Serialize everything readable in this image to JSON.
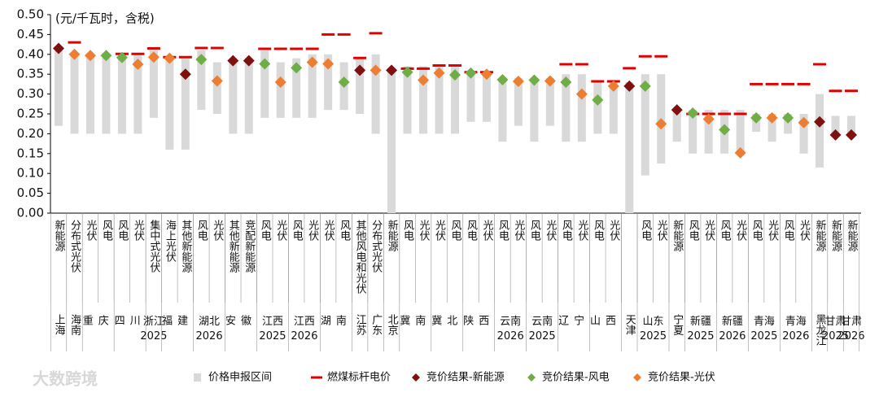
{
  "chart_data": {
    "type": "range_dot",
    "unit_label": "(元/千瓦时，含税)",
    "ylim": [
      0,
      0.5
    ],
    "yticks": [
      {
        "value": 0,
        "label": "0.00"
      },
      {
        "value": 0.05,
        "label": "0.05"
      },
      {
        "value": 0.1,
        "label": "0.10"
      },
      {
        "value": 0.15,
        "label": "0.15"
      },
      {
        "value": 0.2,
        "label": "0.20"
      },
      {
        "value": 0.25,
        "label": "0.25"
      },
      {
        "value": 0.3,
        "label": "0.30"
      },
      {
        "value": 0.35,
        "label": "0.35"
      },
      {
        "value": 0.4,
        "label": "0.40"
      },
      {
        "value": 0.45,
        "label": "0.45"
      },
      {
        "value": 0.5,
        "label": "0.50"
      }
    ],
    "groups": [
      {
        "label": "上海",
        "categories": [
          "新能源"
        ]
      },
      {
        "label": "海南",
        "categories": [
          "分布式光伏"
        ]
      },
      {
        "label": "重庆",
        "categories": [
          "光伏",
          "风电"
        ]
      },
      {
        "label": "四川",
        "categories": [
          "风电",
          "光伏"
        ]
      },
      {
        "label": "浙江2025",
        "categories": [
          "集中式光伏"
        ]
      },
      {
        "label": "福建",
        "categories": [
          "海上光伏",
          "其他新能源"
        ]
      },
      {
        "label": "湖北2026",
        "categories": [
          "风电",
          "光伏"
        ]
      },
      {
        "label": "安徽",
        "categories": [
          "其他新能源",
          "竞配新能源"
        ]
      },
      {
        "label": "江西2025",
        "categories": [
          "风电",
          "光伏"
        ]
      },
      {
        "label": "江西2026",
        "categories": [
          "风电",
          "光伏"
        ]
      },
      {
        "label": "湖南",
        "categories": [
          "光伏",
          "风电"
        ]
      },
      {
        "label": "江苏",
        "categories": [
          "其他风电和光伏"
        ]
      },
      {
        "label": "广东",
        "categories": [
          "分布式光伏"
        ]
      },
      {
        "label": "北京",
        "categories": [
          "新能源"
        ]
      },
      {
        "label": "冀南",
        "categories": [
          "风电",
          "光伏"
        ]
      },
      {
        "label": "冀北",
        "categories": [
          "光伏",
          "风电"
        ]
      },
      {
        "label": "陕西",
        "categories": [
          "风电",
          "光伏"
        ]
      },
      {
        "label": "云南2026",
        "categories": [
          "风电",
          "光伏"
        ]
      },
      {
        "label": "云南2025",
        "categories": [
          "风电",
          "光伏"
        ]
      },
      {
        "label": "辽宁",
        "categories": [
          "风电",
          "光伏"
        ]
      },
      {
        "label": "山西",
        "categories": [
          "风电",
          "光伏"
        ]
      },
      {
        "label": "天津",
        "categories": [
          null
        ]
      },
      {
        "label": "山东2025",
        "categories": [
          "风电",
          "光伏"
        ]
      },
      {
        "label": "宁夏",
        "categories": [
          "新能源"
        ]
      },
      {
        "label": "新疆2025",
        "categories": [
          "风电",
          "光伏"
        ]
      },
      {
        "label": "新疆2026",
        "categories": [
          "风电",
          "光伏"
        ]
      },
      {
        "label": "青海2025",
        "categories": [
          "风电",
          "光伏"
        ]
      },
      {
        "label": "青海2026",
        "categories": [
          "风电",
          "光伏"
        ]
      },
      {
        "label": "黑龙江",
        "categories": [
          "新能源"
        ]
      },
      {
        "label": "甘肃2025",
        "categories": [
          "新能源"
        ]
      },
      {
        "label": "甘肃2026",
        "categories": [
          "新能源"
        ]
      }
    ],
    "series": [
      {
        "name": "价格申报区间",
        "color": "#d9d9d9",
        "low": [
          0.22,
          0.2,
          0.2,
          0.2,
          0.2,
          0.2,
          0.24,
          0.16,
          0.16,
          0.26,
          0.25,
          0.2,
          0.2,
          0.24,
          0.24,
          0.24,
          0.24,
          0.26,
          0.26,
          0.25,
          0.2,
          0,
          0.2,
          0.2,
          0.2,
          0.2,
          0.23,
          0.23,
          0.18,
          0.22,
          0.18,
          0.22,
          0.18,
          0.18,
          0.2,
          0.2,
          0,
          0.095,
          0.125,
          0.18,
          0.15,
          0.15,
          0.15,
          0.15,
          0.205,
          0.18,
          0.2,
          0.15,
          0.115,
          0.2,
          0.2
        ],
        "high": [
          0.42,
          0.4,
          0.4,
          0.4,
          0.4,
          0.4,
          0.41,
          0.39,
          0.39,
          0.41,
          0.38,
          0.38,
          0.38,
          0.41,
          0.38,
          0.39,
          0.4,
          0.4,
          0.38,
          0.39,
          0.4,
          0.36,
          0.37,
          0.37,
          0.37,
          0.37,
          0.355,
          0.355,
          0.34,
          0.34,
          0.34,
          0.34,
          0.35,
          0.35,
          0.33,
          0.33,
          0.33,
          0.35,
          0.35,
          0.265,
          0.26,
          0.26,
          0.26,
          0.26,
          0.25,
          0.25,
          0.25,
          0.25,
          0.3,
          0.245,
          0.245
        ]
      },
      {
        "name": "燃煤标杆电价",
        "color": "#e00000",
        "values": [
          null,
          0.43,
          null,
          null,
          0.401,
          0.401,
          0.415,
          0.393,
          0.393,
          0.416,
          0.416,
          null,
          null,
          0.414,
          0.414,
          0.414,
          0.414,
          0.45,
          0.45,
          0.391,
          0.453,
          null,
          0.364,
          0.364,
          0.372,
          0.372,
          0.355,
          0.355,
          null,
          null,
          null,
          null,
          0.375,
          0.375,
          0.332,
          0.332,
          0.365,
          0.395,
          0.395,
          null,
          0.25,
          0.25,
          0.25,
          0.25,
          0.325,
          0.325,
          0.325,
          0.325,
          0.375,
          0.308,
          0.308
        ]
      },
      {
        "name": "竞价结果-新能源",
        "color": "#7f1010",
        "values": [
          0.415,
          null,
          null,
          null,
          null,
          null,
          null,
          null,
          0.35,
          null,
          null,
          0.384,
          0.384,
          null,
          null,
          null,
          null,
          null,
          null,
          0.36,
          null,
          0.36,
          null,
          null,
          null,
          null,
          null,
          null,
          null,
          null,
          null,
          null,
          null,
          null,
          null,
          null,
          0.32,
          null,
          null,
          0.26,
          null,
          null,
          null,
          null,
          null,
          null,
          null,
          null,
          0.23,
          0.197,
          0.197
        ]
      },
      {
        "name": "竞价结果-风电",
        "color": "#70ad47",
        "values": [
          null,
          null,
          null,
          0.397,
          0.392,
          null,
          null,
          null,
          null,
          0.387,
          null,
          null,
          null,
          0.376,
          null,
          0.366,
          null,
          null,
          0.33,
          null,
          null,
          null,
          0.355,
          null,
          null,
          0.348,
          0.353,
          null,
          0.336,
          null,
          0.335,
          null,
          0.33,
          null,
          0.285,
          null,
          null,
          0.32,
          null,
          null,
          0.252,
          null,
          0.21,
          null,
          0.24,
          null,
          0.24,
          null,
          null,
          null,
          null
        ]
      },
      {
        "name": "竞价结果-光伏",
        "color": "#ed7d31",
        "values": [
          null,
          0.4,
          0.397,
          null,
          null,
          0.375,
          0.393,
          0.39,
          null,
          null,
          0.333,
          null,
          null,
          null,
          0.33,
          null,
          0.38,
          0.376,
          null,
          null,
          0.36,
          null,
          null,
          0.335,
          0.353,
          null,
          null,
          0.35,
          null,
          0.332,
          null,
          0.333,
          null,
          0.3,
          null,
          0.32,
          null,
          null,
          0.225,
          null,
          null,
          0.237,
          null,
          0.152,
          null,
          0.24,
          null,
          0.228,
          null,
          null,
          null
        ]
      }
    ]
  },
  "watermark": "大数跨境"
}
